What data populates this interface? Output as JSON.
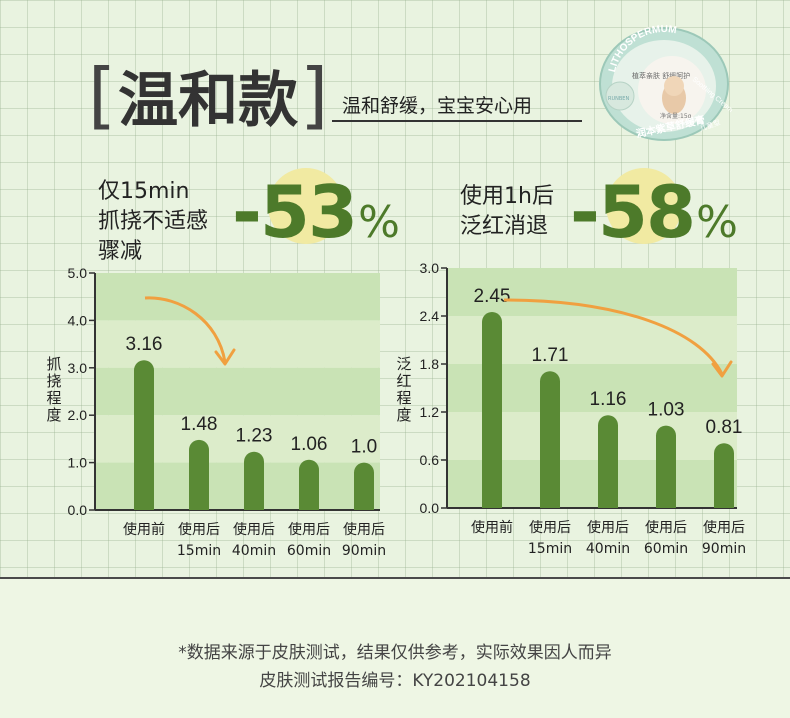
{
  "header": {
    "title": "温和款",
    "bracket_left": "[",
    "bracket_right": "]",
    "subtitle": "温和舒缓，宝宝安心用"
  },
  "product": {
    "brand_arc": "LITHOSPERMUM",
    "brand_arc_2": "Soothing Cream",
    "name": "润本紫草舒缓膏",
    "tagline": "植萃亲肤 舒缓呵护",
    "weight": "净含量:15g",
    "badge": "儿童型",
    "logo": "RUNBEN"
  },
  "stats": [
    {
      "label_lines": [
        "仅15min",
        "抓挠不适感",
        "骤减"
      ],
      "value": "-53",
      "unit": "%"
    },
    {
      "label_lines": [
        "使用1h后",
        "泛红消退"
      ],
      "value": "-58",
      "unit": "%"
    }
  ],
  "chart_data": [
    {
      "type": "bar",
      "ylabel": "抓挠程度",
      "ylim": [
        0,
        5.0
      ],
      "yticks": [
        "0.0",
        "1.0",
        "2.0",
        "3.0",
        "4.0",
        "5.0"
      ],
      "categories": [
        [
          "使用前"
        ],
        [
          "使用后",
          "15min"
        ],
        [
          "使用后",
          "40min"
        ],
        [
          "使用后",
          "60min"
        ],
        [
          "使用后",
          "90min"
        ]
      ],
      "values": [
        3.16,
        1.48,
        1.23,
        1.06,
        1.0
      ],
      "value_labels": [
        "3.16",
        "1.48",
        "1.23",
        "1.06",
        "1.0"
      ],
      "bar_color": "#5a8a35",
      "band_colors": [
        "#c9e3b5",
        "#dcecca"
      ]
    },
    {
      "type": "bar",
      "ylabel": "泛红程度",
      "ylim": [
        0,
        3.0
      ],
      "yticks": [
        "0.0",
        "0.6",
        "1.2",
        "1.8",
        "2.4",
        "3.0"
      ],
      "categories": [
        [
          "使用前"
        ],
        [
          "使用后",
          "15min"
        ],
        [
          "使用后",
          "40min"
        ],
        [
          "使用后",
          "60min"
        ],
        [
          "使用后",
          "90min"
        ]
      ],
      "values": [
        2.45,
        1.71,
        1.16,
        1.03,
        0.81
      ],
      "value_labels": [
        "2.45",
        "1.71",
        "1.16",
        "1.03",
        "0.81"
      ],
      "bar_color": "#5a8a35",
      "band_colors": [
        "#c9e3b5",
        "#dcecca"
      ]
    }
  ],
  "footer": {
    "line1": "*数据来源于皮肤测试，结果仅供参考，实际效果因人而异",
    "line2": "皮肤测试报告编号：KY202104158"
  },
  "colors": {
    "accent_green": "#4d7a2a",
    "arrow_orange": "#f0a040",
    "highlight_yellow": "#f1eaa2"
  }
}
